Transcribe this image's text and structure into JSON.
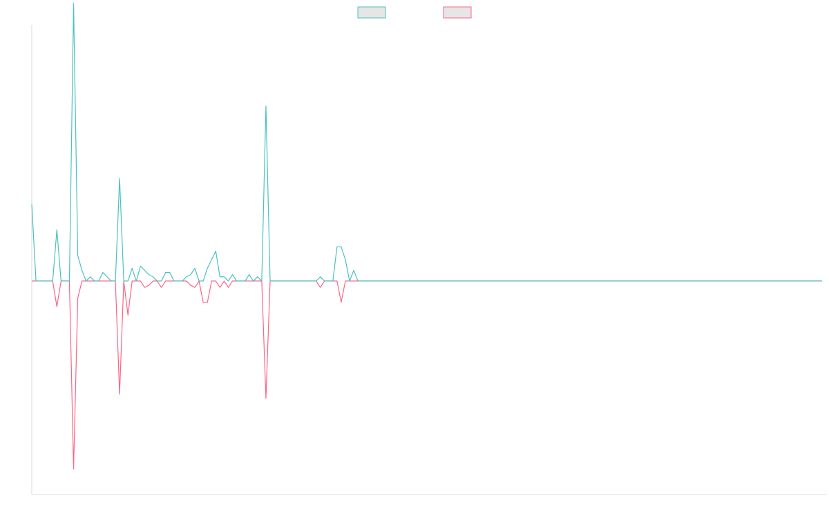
{
  "chart_data": {
    "type": "line",
    "title": "",
    "xlabel": "",
    "ylabel": "",
    "legend_position": "top-center",
    "grid": false,
    "show_axes": true,
    "show_ticks": false,
    "ylim": [
      -1,
      1.2
    ],
    "xlim": [
      0,
      190
    ],
    "series": [
      {
        "color": "#4bc0c0",
        "fill": "#e6e6e6",
        "values": [
          0.36,
          0.0,
          0.0,
          0.0,
          0.0,
          0.0,
          0.24,
          0.0,
          0.0,
          0.0,
          1.3,
          0.12,
          0.05,
          0.0,
          0.0,
          0.0,
          0.0,
          0.0,
          0.0,
          0.0,
          0.0,
          0.48,
          0.0,
          0.0,
          0.06,
          0.0,
          0.07,
          0.0,
          0.0,
          0.02,
          0.0,
          0.0,
          0.04,
          0.0,
          0.0,
          0.0,
          0.0,
          0.02,
          0.0,
          0.0,
          0.0,
          0.0,
          0.0,
          0.0,
          0.0,
          0.0,
          0.0,
          0.0,
          0.0,
          0.0,
          0.0,
          0.0,
          0.0,
          0.0,
          0.0,
          0.0,
          0.0,
          0.0,
          0.0,
          0.0,
          0.0,
          0.0,
          0.0,
          0.0,
          0.0,
          0.0,
          0.0,
          0.0,
          0.0,
          0.0,
          0.0,
          0.0,
          0.0,
          0.0,
          0.0,
          0.0,
          0.0,
          0.05,
          0.0,
          0.0,
          0.0,
          0.0,
          0.0,
          0.0,
          0.0,
          0.0,
          0.0,
          0.0,
          0.0,
          0.0,
          0.0,
          0.0,
          0.0,
          0.0,
          0.0,
          0.0,
          0.0,
          0.0,
          0.0,
          0.0,
          0.0,
          0.0,
          0.0,
          0.0,
          0.0,
          0.0,
          0.0,
          0.0,
          0.0,
          0.0,
          0.0,
          0.0,
          0.0,
          0.0,
          0.0,
          0.0,
          0.0,
          0.0,
          0.0,
          0.0,
          0.0,
          0.0,
          0.0,
          0.0,
          0.0,
          0.0,
          0.0,
          0.0,
          0.0,
          0.0,
          0.0,
          0.0,
          0.0,
          0.0,
          0.0,
          0.0,
          0.0,
          0.0,
          0.0,
          0.0,
          0.0,
          0.0,
          0.0,
          0.0,
          0.0,
          0.0,
          0.0,
          0.0,
          0.0,
          0.0,
          0.0,
          0.0,
          0.0,
          0.0,
          0.0,
          0.0,
          0.0,
          0.0,
          0.0,
          0.0,
          0.0,
          0.0,
          0.0,
          0.0,
          0.0,
          0.0,
          0.0,
          0.0,
          0.0,
          0.0,
          0.0,
          0.0,
          0.0,
          0.0,
          0.0,
          0.0,
          0.0,
          0.0,
          0.0,
          0.0,
          0.0,
          0.0,
          0.0,
          0.0,
          0.0,
          0.0,
          0.0,
          0.0,
          0.0,
          0.0
        ]
      },
      {
        "color": "#ff6384",
        "fill": "#e6e6e6",
        "values": [
          0.0,
          0.0,
          0.0,
          0.0,
          0.0,
          0.0,
          -0.12,
          0.0,
          0.0,
          0.0,
          -0.88,
          -0.08,
          0.0,
          0.0,
          0.0,
          0.0,
          0.0,
          0.0,
          0.0,
          0.0,
          0.0,
          -0.53,
          0.0,
          -0.16,
          0.0,
          0.0,
          0.0,
          0.0,
          0.0,
          0.0,
          0.0,
          0.0,
          0.0,
          0.0,
          0.0,
          0.0,
          0.0,
          0.0,
          0.0,
          0.0,
          0.0,
          0.0,
          0.0,
          0.0,
          0.0,
          0.0,
          0.0,
          0.0,
          0.0,
          0.0,
          0.0,
          0.0,
          0.0,
          0.0,
          0.0,
          0.0,
          0.0,
          0.0,
          0.0,
          0.0,
          0.0,
          0.0,
          0.0,
          0.0,
          0.0,
          0.0,
          0.0,
          0.0,
          0.0,
          0.0,
          0.0,
          0.0,
          0.0,
          0.0,
          0.0,
          0.0,
          0.0,
          0.0,
          0.0,
          0.0,
          0.0,
          0.0,
          0.0,
          0.0,
          0.0,
          0.0,
          0.0,
          0.0,
          0.0,
          0.0,
          0.0,
          0.0,
          0.0,
          0.0,
          0.0,
          0.0,
          0.0,
          0.0,
          0.0,
          0.0,
          0.0,
          0.0,
          0.0,
          0.0,
          0.0,
          0.0,
          0.0,
          0.0,
          0.0,
          0.0,
          0.0,
          0.0,
          0.0,
          0.0,
          0.0,
          0.0,
          0.0,
          0.0,
          0.0,
          0.0,
          0.0,
          0.0,
          0.0,
          0.0,
          0.0,
          0.0,
          0.0,
          0.0,
          0.0,
          0.0,
          0.0,
          0.0,
          0.0,
          0.0,
          0.0,
          0.0,
          0.0,
          0.0,
          0.0,
          0.0,
          0.0,
          0.0,
          0.0,
          0.0,
          0.0,
          0.0,
          0.0,
          0.0,
          0.0,
          0.0,
          0.0,
          0.0,
          0.0,
          0.0,
          0.0,
          0.0,
          0.0,
          0.0,
          0.0,
          0.0,
          0.0,
          0.0,
          0.0,
          0.0,
          0.0,
          0.0,
          0.0,
          0.0,
          0.0,
          0.0,
          0.0,
          0.0,
          0.0,
          0.0,
          0.0,
          0.0,
          0.0,
          0.0,
          0.0,
          0.0,
          0.0,
          0.0,
          0.0,
          0.0,
          0.0,
          0.0,
          0.0,
          0.0,
          0.0,
          0.0
        ]
      }
    ],
    "extra_points": [
      {
        "series": 0,
        "x": 14,
        "y": 0.02
      },
      {
        "series": 0,
        "x": 17,
        "y": 0.04
      },
      {
        "series": 0,
        "x": 18,
        "y": 0.02
      },
      {
        "series": 0,
        "x": 27,
        "y": 0.05
      },
      {
        "series": 0,
        "x": 28,
        "y": 0.03
      },
      {
        "series": 0,
        "x": 33,
        "y": 0.04
      },
      {
        "series": 0,
        "x": 38,
        "y": 0.03
      },
      {
        "series": 0,
        "x": 39,
        "y": 0.06
      },
      {
        "series": 0,
        "x": 42,
        "y": 0.06
      },
      {
        "series": 0,
        "x": 43,
        "y": 0.1
      },
      {
        "series": 0,
        "x": 44,
        "y": 0.14
      },
      {
        "series": 0,
        "x": 45,
        "y": 0.02
      },
      {
        "series": 0,
        "x": 46,
        "y": 0.02
      },
      {
        "series": 0,
        "x": 48,
        "y": 0.03
      },
      {
        "series": 0,
        "x": 52,
        "y": 0.03
      },
      {
        "series": 0,
        "x": 54,
        "y": 0.02
      },
      {
        "series": 0,
        "x": 56,
        "y": 0.82
      },
      {
        "series": 0,
        "x": 69,
        "y": 0.02
      },
      {
        "series": 0,
        "x": 73,
        "y": 0.16
      },
      {
        "series": 0,
        "x": 74,
        "y": 0.16
      },
      {
        "series": 0,
        "x": 75,
        "y": 0.1
      },
      {
        "series": 1,
        "x": 27,
        "y": -0.03
      },
      {
        "series": 1,
        "x": 28,
        "y": -0.02
      },
      {
        "series": 1,
        "x": 31,
        "y": -0.03
      },
      {
        "series": 1,
        "x": 38,
        "y": -0.02
      },
      {
        "series": 1,
        "x": 39,
        "y": -0.03
      },
      {
        "series": 1,
        "x": 41,
        "y": -0.1
      },
      {
        "series": 1,
        "x": 42,
        "y": -0.1
      },
      {
        "series": 1,
        "x": 45,
        "y": -0.03
      },
      {
        "series": 1,
        "x": 47,
        "y": -0.03
      },
      {
        "series": 1,
        "x": 56,
        "y": -0.55
      },
      {
        "series": 1,
        "x": 69,
        "y": -0.03
      },
      {
        "series": 1,
        "x": 74,
        "y": -0.1
      }
    ]
  }
}
